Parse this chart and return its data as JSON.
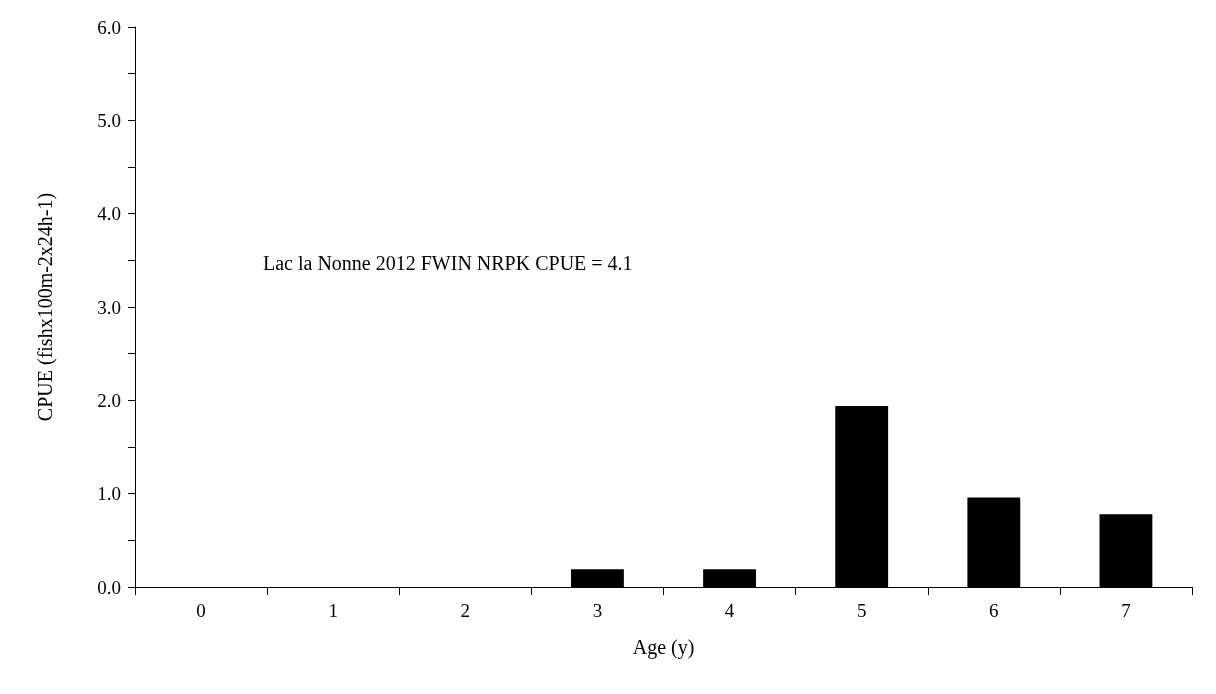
{
  "chart_data": {
    "type": "bar",
    "xlabel": "Age (y)",
    "ylabel": "CPUE (fishx100m-2x24h-1)",
    "categories": [
      "0",
      "1",
      "2",
      "3",
      "4",
      "5",
      "6",
      "7"
    ],
    "values": [
      0,
      0,
      0,
      0.19,
      0.19,
      1.94,
      0.96,
      0.78
    ],
    "color": "#000000",
    "ylim": [
      0,
      6
    ],
    "yticks": [
      {
        "value": 0,
        "label": "0.0"
      },
      {
        "value": 0.5,
        "label": null
      },
      {
        "value": 1,
        "label": "1.0"
      },
      {
        "value": 1.5,
        "label": null
      },
      {
        "value": 2,
        "label": "2.0"
      },
      {
        "value": 2.5,
        "label": null
      },
      {
        "value": 3,
        "label": "3.0"
      },
      {
        "value": 3.5,
        "label": null
      },
      {
        "value": 4,
        "label": "4.0"
      },
      {
        "value": 4.5,
        "label": null
      },
      {
        "value": 5,
        "label": "5.0"
      },
      {
        "value": 5.5,
        "label": null
      },
      {
        "value": 6,
        "label": "6.0"
      }
    ],
    "annotations": [
      "Lac la Nonne 2012 FWIN NRPK CPUE = 4.1"
    ],
    "grid": false
  }
}
